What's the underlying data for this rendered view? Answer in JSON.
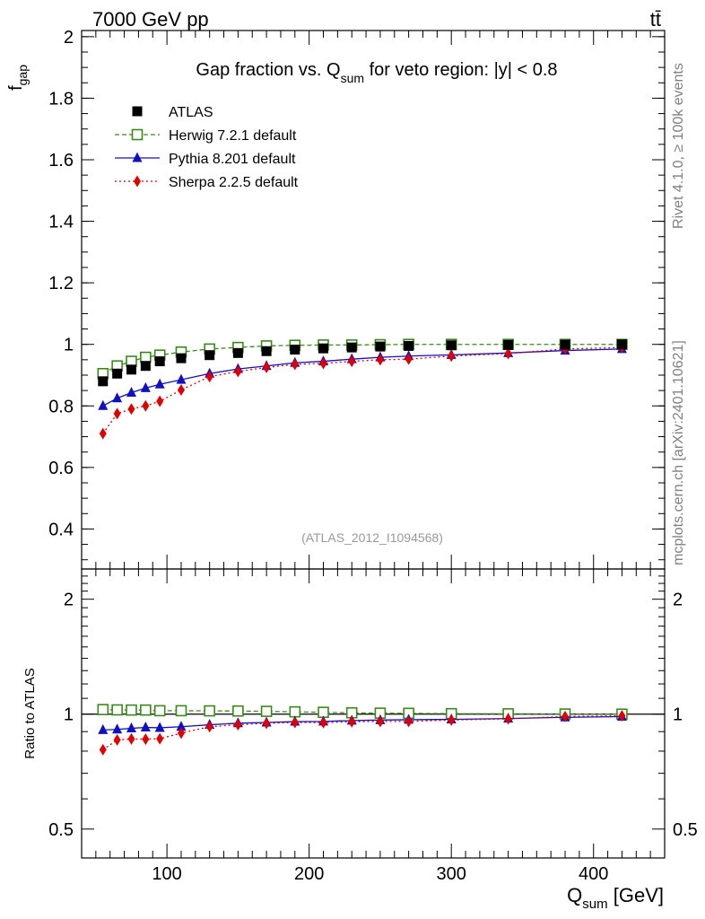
{
  "header": {
    "energy_label": "7000 GeV pp",
    "process_label": "tt̄",
    "side_label_top": "Rivet 4.1.0, ≥ 100k events",
    "side_label_bottom": "mcplots.cern.ch [arXiv:2401.10621]"
  },
  "chart_data": [
    {
      "type": "scatter",
      "title": "Gap fraction vs. Q",
      "title_sub": "sum",
      "title_rest": " for veto region: |y| < 0.8",
      "ylabel": "f",
      "ylabel_sub": "gap",
      "ylim": [
        0.27,
        2.02
      ],
      "yticks": [
        0.4,
        0.6,
        0.8,
        1,
        1.2,
        1.4,
        1.6,
        1.8,
        2
      ],
      "ytick_labels": [
        "0.4",
        "0.6",
        "0.8",
        "1",
        "1.2",
        "1.4",
        "1.6",
        "1.8",
        "2"
      ],
      "analysis_label": "(ATLAS_2012_I1094568)",
      "legend_position": "top-left",
      "x": [
        55,
        65,
        75,
        85,
        95,
        110,
        130,
        150,
        170,
        190,
        210,
        230,
        250,
        270,
        300,
        340,
        380,
        420
      ],
      "series": [
        {
          "name": "ATLAS",
          "marker": "square-filled",
          "line": "none",
          "color": "#000000",
          "values": [
            0.88,
            0.905,
            0.918,
            0.93,
            0.945,
            0.955,
            0.965,
            0.972,
            0.978,
            0.983,
            0.987,
            0.99,
            0.993,
            0.995,
            0.997,
            0.998,
            0.999,
            1.0
          ]
        },
        {
          "name": "Herwig 7.2.1 default",
          "marker": "square-open",
          "line": "dashed",
          "color": "#3a8a1a",
          "values": [
            0.905,
            0.93,
            0.945,
            0.958,
            0.965,
            0.975,
            0.985,
            0.99,
            0.995,
            0.997,
            0.998,
            0.998,
            0.999,
            1.0,
            1.0,
            1.0,
            1.0,
            1.0
          ]
        },
        {
          "name": "Pythia 8.201 default",
          "marker": "triangle-filled",
          "line": "solid",
          "color": "#1010c0",
          "values": [
            0.8,
            0.825,
            0.843,
            0.858,
            0.87,
            0.885,
            0.905,
            0.92,
            0.93,
            0.94,
            0.945,
            0.952,
            0.958,
            0.962,
            0.966,
            0.972,
            0.98,
            0.985
          ]
        },
        {
          "name": "Sherpa 2.2.5 default",
          "marker": "diamond-filled",
          "line": "dotted",
          "color": "#e00000",
          "values": [
            0.71,
            0.775,
            0.79,
            0.8,
            0.815,
            0.852,
            0.895,
            0.912,
            0.925,
            0.935,
            0.938,
            0.945,
            0.95,
            0.952,
            0.962,
            0.97,
            0.985,
            0.99
          ]
        }
      ]
    },
    {
      "type": "scatter",
      "title": "",
      "ylabel": "Ratio to ATLAS",
      "xlabel": "Q",
      "xlabel_sub": "sum",
      "xlabel_rest": " [GeV]",
      "yscale": "log",
      "ylim": [
        0.42,
        2.4
      ],
      "yticks": [
        0.5,
        1,
        2
      ],
      "ytick_labels": [
        "0.5",
        "1",
        "2"
      ],
      "xlim": [
        40,
        450
      ],
      "xticks": [
        100,
        200,
        300,
        400
      ],
      "xtick_labels": [
        "100",
        "200",
        "300",
        "400"
      ],
      "x": [
        55,
        65,
        75,
        85,
        95,
        110,
        130,
        150,
        170,
        190,
        210,
        230,
        250,
        270,
        300,
        340,
        380,
        420
      ],
      "series": [
        {
          "name": "Herwig 7.2.1 default",
          "marker": "square-open",
          "line": "dashed",
          "color": "#3a8a1a",
          "values": [
            1.028,
            1.026,
            1.025,
            1.025,
            1.021,
            1.021,
            1.02,
            1.019,
            1.017,
            1.014,
            1.011,
            1.008,
            1.006,
            1.005,
            1.003,
            1.002,
            1.001,
            1.0
          ]
        },
        {
          "name": "Pythia 8.201 default",
          "marker": "triangle-filled",
          "line": "solid",
          "color": "#1010c0",
          "values": [
            0.909,
            0.912,
            0.918,
            0.923,
            0.921,
            0.927,
            0.938,
            0.947,
            0.951,
            0.956,
            0.957,
            0.962,
            0.965,
            0.967,
            0.969,
            0.974,
            0.981,
            0.985
          ]
        },
        {
          "name": "Sherpa 2.2.5 default",
          "marker": "diamond-filled",
          "line": "dotted",
          "color": "#e00000",
          "values": [
            0.807,
            0.856,
            0.861,
            0.86,
            0.862,
            0.892,
            0.927,
            0.938,
            0.946,
            0.951,
            0.95,
            0.955,
            0.957,
            0.957,
            0.965,
            0.972,
            0.986,
            0.99
          ]
        }
      ]
    }
  ]
}
